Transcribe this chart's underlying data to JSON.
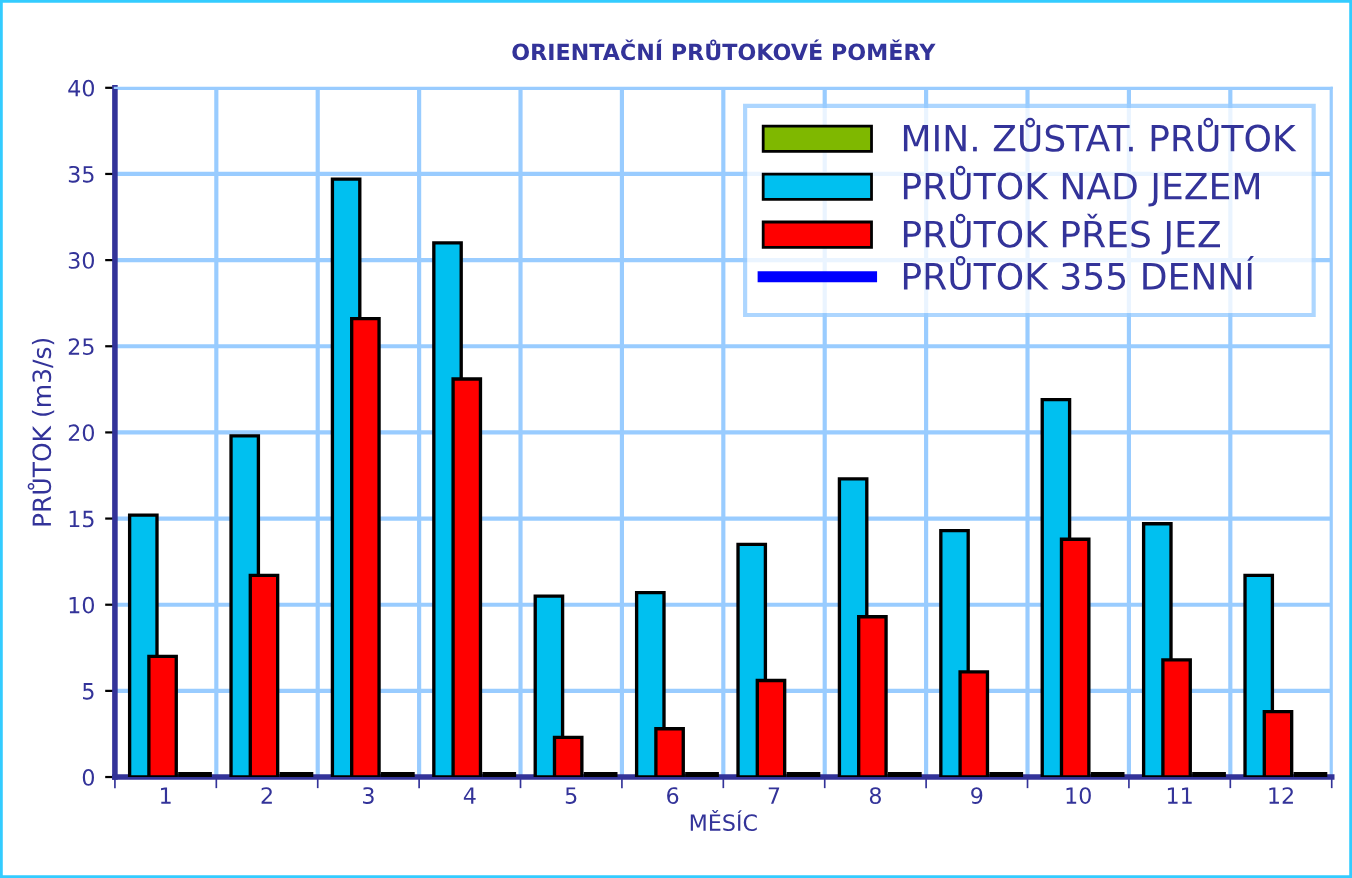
{
  "chart_data": {
    "type": "bar",
    "title": "ORIENTAČNÍ PRŮTOKOVÉ POMĚRY",
    "xlabel": "MĚSÍC",
    "ylabel": "PRŮTOK (m3/s)",
    "categories": [
      "1",
      "2",
      "3",
      "4",
      "5",
      "6",
      "7",
      "8",
      "9",
      "10",
      "11",
      "12"
    ],
    "series": [
      {
        "name": "MIN. ZŮSTAT. PRŮTOK",
        "color": "#7fb800",
        "values": [
          0.2,
          0.2,
          0.2,
          0.2,
          0.2,
          0.2,
          0.2,
          0.2,
          0.2,
          0.2,
          0.2,
          0.2
        ]
      },
      {
        "name": "PRŮTOK NAD JEZEM",
        "color": "#00c0f0",
        "values": [
          15.2,
          19.8,
          34.7,
          31.0,
          10.5,
          10.7,
          13.5,
          17.3,
          14.3,
          21.9,
          14.7,
          11.7
        ]
      },
      {
        "name": "PRŮTOK PŘES JEZ",
        "color": "#ff0000",
        "values": [
          7.0,
          11.7,
          26.6,
          23.1,
          2.3,
          2.8,
          5.6,
          9.3,
          6.1,
          13.8,
          6.8,
          3.8
        ]
      },
      {
        "name": "PRŮTOK 355 DENNÍ",
        "type": "line",
        "color": "#0000ff",
        "values": [
          null,
          null,
          null,
          null,
          null,
          null,
          null,
          null,
          null,
          null,
          null,
          null
        ]
      }
    ],
    "ylim": [
      0,
      40
    ],
    "yticks": [
      0,
      5,
      10,
      15,
      20,
      25,
      30,
      35,
      40
    ],
    "grid": true,
    "legend": "top right"
  }
}
